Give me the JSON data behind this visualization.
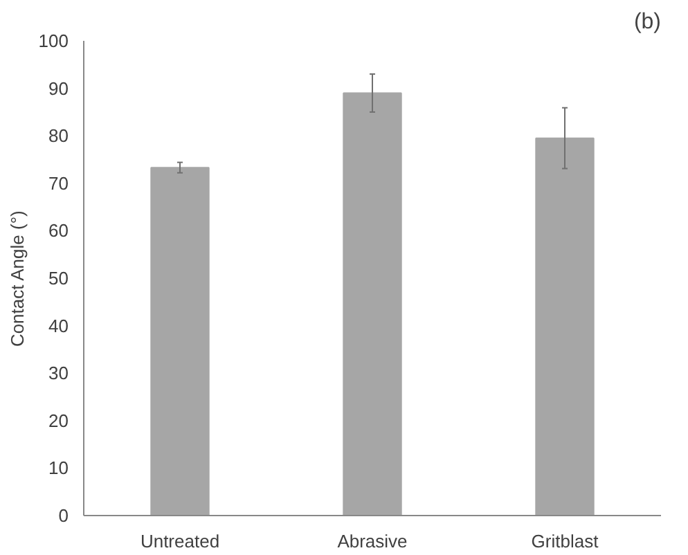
{
  "chart_data": {
    "type": "bar",
    "ylabel": "Contact Angle (°)",
    "categories": [
      "Untreated",
      "Abrasive",
      "Gritblast"
    ],
    "values": [
      73.3,
      89.0,
      79.5
    ],
    "errors": [
      1.1,
      4.0,
      6.4
    ],
    "color": "#a6a6a6",
    "ylim": [
      0,
      100
    ],
    "yticks": [
      0,
      10,
      20,
      30,
      40,
      50,
      60,
      70,
      80,
      90,
      100
    ],
    "grid": false,
    "annotations": [
      "(b)"
    ]
  }
}
